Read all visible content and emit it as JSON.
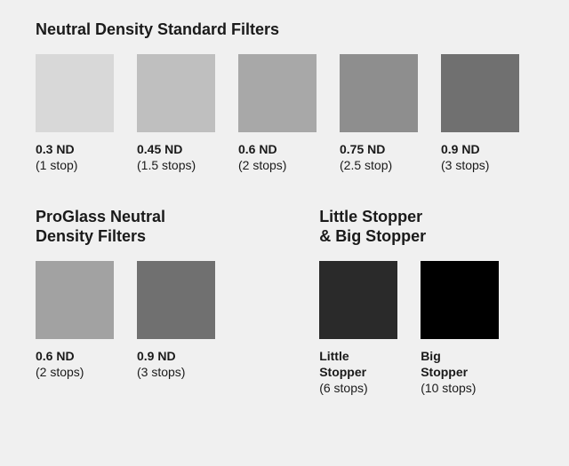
{
  "page_bg": "#f0f0f0",
  "sections": {
    "standard": {
      "title": "Neutral Density Standard Filters",
      "items": [
        {
          "label": "0.3 ND",
          "sublabel": "(1 stop)",
          "color": "#d8d8d8"
        },
        {
          "label": "0.45 ND",
          "sublabel": "(1.5 stops)",
          "color": "#bfbfbf"
        },
        {
          "label": "0.6 ND",
          "sublabel": "(2 stops)",
          "color": "#a8a8a8"
        },
        {
          "label": "0.75 ND",
          "sublabel": "(2.5 stop)",
          "color": "#8e8e8e"
        },
        {
          "label": "0.9 ND",
          "sublabel": "(3 stops)",
          "color": "#707070"
        }
      ]
    },
    "proglass": {
      "title": "ProGlass Neutral\nDensity Filters",
      "items": [
        {
          "label": "0.6 ND",
          "sublabel": "(2 stops)",
          "color": "#a2a2a2"
        },
        {
          "label": "0.9 ND",
          "sublabel": "(3 stops)",
          "color": "#707070"
        }
      ]
    },
    "stopper": {
      "title": "Little Stopper\n& Big Stopper",
      "items": [
        {
          "label": "Little\nStopper",
          "sublabel": "(6 stops)",
          "color": "#2a2a2a"
        },
        {
          "label": "Big\nStopper",
          "sublabel": "(10 stops)",
          "color": "#000000"
        }
      ]
    }
  },
  "typography": {
    "title_fontsize": 18,
    "title_fontweight": "bold",
    "label_fontsize": 14,
    "label_fontweight": "bold",
    "sublabel_fontsize": 14,
    "sublabel_fontweight": "normal",
    "text_color": "#1a1a1a"
  },
  "layout": {
    "swatch_size": 88,
    "swatch_gap": 26
  }
}
